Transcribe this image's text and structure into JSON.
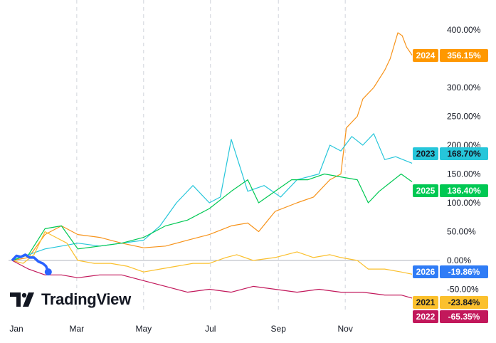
{
  "chart_data": {
    "type": "line",
    "xlabel": "",
    "ylabel": "",
    "x_ticks": [
      "Jan",
      "Mar",
      "May",
      "Jul",
      "Sep",
      "Nov"
    ],
    "y_ticks": [
      "400.00%",
      "300.00%",
      "250.00%",
      "200.00%",
      "150.00%",
      "100.00%",
      "50.00%",
      "0.00%",
      "-50.00%"
    ],
    "ylim": [
      -75,
      410
    ],
    "grid": "vertical dashed at month ticks",
    "legend": "right price-axis tags",
    "x_unit": "day of year",
    "series": [
      {
        "name": "2024",
        "color": "#f7931a",
        "end_label": "356.15%",
        "x": [
          0,
          15,
          30,
          45,
          60,
          80,
          100,
          120,
          140,
          160,
          180,
          200,
          215,
          225,
          240,
          260,
          275,
          290,
          300,
          305,
          315,
          320,
          330,
          340,
          345,
          352,
          356,
          360,
          365
        ],
        "y": [
          0,
          5,
          45,
          60,
          45,
          40,
          30,
          22,
          25,
          35,
          45,
          60,
          65,
          50,
          85,
          100,
          110,
          140,
          150,
          230,
          250,
          280,
          300,
          330,
          350,
          395,
          390,
          370,
          356.15
        ]
      },
      {
        "name": "2023",
        "color": "#26c6da",
        "end_label": "168.70%",
        "x": [
          0,
          15,
          30,
          45,
          60,
          80,
          100,
          120,
          135,
          150,
          165,
          180,
          190,
          200,
          215,
          230,
          245,
          260,
          280,
          290,
          300,
          310,
          320,
          330,
          340,
          350,
          365
        ],
        "y": [
          0,
          10,
          20,
          25,
          30,
          25,
          30,
          35,
          60,
          100,
          130,
          100,
          110,
          210,
          120,
          130,
          110,
          140,
          150,
          200,
          190,
          215,
          200,
          220,
          175,
          180,
          168.7
        ]
      },
      {
        "name": "2025",
        "color": "#00c853",
        "end_label": "136.40%",
        "x": [
          0,
          15,
          30,
          45,
          60,
          80,
          100,
          120,
          140,
          160,
          180,
          200,
          215,
          225,
          240,
          255,
          270,
          285,
          300,
          315,
          325,
          335,
          345,
          355,
          365
        ],
        "y": [
          0,
          10,
          55,
          60,
          20,
          25,
          30,
          40,
          60,
          70,
          90,
          120,
          140,
          100,
          120,
          140,
          140,
          150,
          145,
          140,
          100,
          120,
          135,
          150,
          136.4
        ]
      },
      {
        "name": "2021",
        "color": "#fbc02d",
        "end_label": "-23.84%",
        "x": [
          0,
          10,
          20,
          30,
          40,
          50,
          60,
          75,
          90,
          105,
          120,
          135,
          150,
          165,
          180,
          195,
          205,
          220,
          240,
          260,
          275,
          290,
          300,
          315,
          325,
          340,
          355,
          365
        ],
        "y": [
          0,
          -5,
          10,
          50,
          40,
          30,
          0,
          -5,
          -5,
          -10,
          -20,
          -15,
          -10,
          -5,
          -5,
          5,
          10,
          0,
          5,
          15,
          5,
          10,
          5,
          0,
          -15,
          -15,
          -20,
          -23.84
        ]
      },
      {
        "name": "2022",
        "color": "#c2185b",
        "end_label": "-65.35%",
        "x": [
          0,
          15,
          30,
          45,
          60,
          80,
          100,
          120,
          140,
          160,
          180,
          200,
          220,
          240,
          260,
          280,
          300,
          320,
          340,
          355,
          365
        ],
        "y": [
          0,
          -15,
          -25,
          -25,
          -30,
          -25,
          -25,
          -35,
          -45,
          -55,
          -50,
          -55,
          -45,
          -50,
          -55,
          -50,
          -55,
          -55,
          -60,
          -60,
          -65.35
        ]
      },
      {
        "name": "2026",
        "color": "#2962ff",
        "end_label": "-19.86%",
        "x": [
          0,
          4,
          8,
          12,
          16,
          20,
          24,
          28,
          31,
          33
        ],
        "y": [
          0,
          8,
          6,
          10,
          5,
          5,
          -2,
          -5,
          -10,
          -19.86
        ]
      }
    ],
    "tag_order": [
      "2024",
      "2023",
      "2025",
      "2026",
      "2021",
      "2022"
    ],
    "tag_colors": {
      "2024": "#ff9800",
      "2023": "#26c6da",
      "2025": "#00c853",
      "2026": "#2f7cf6",
      "2021": "#fbc02d",
      "2022": "#c2185b"
    },
    "tag_text_colors": {
      "2024": "#ffffff",
      "2023": "#131722",
      "2025": "#ffffff",
      "2026": "#ffffff",
      "2021": "#131722",
      "2022": "#ffffff"
    }
  },
  "brand": {
    "name": "TradingView"
  }
}
